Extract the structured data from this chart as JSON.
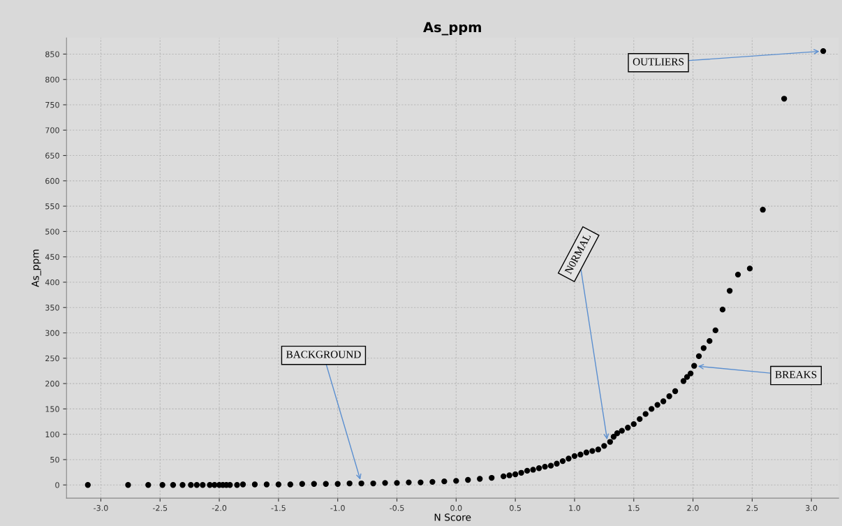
{
  "chart_data": {
    "type": "scatter",
    "title": "As_ppm",
    "xlabel": "N Score",
    "ylabel": "As_ppm",
    "x": [
      -3.11,
      -2.77,
      -2.6,
      -2.48,
      -2.39,
      -2.31,
      -2.24,
      -2.19,
      -2.14,
      -2.08,
      -2.04,
      -2.0,
      -1.97,
      -1.94,
      -1.91,
      -1.85,
      -1.8,
      -1.7,
      -1.6,
      -1.5,
      -1.4,
      -1.3,
      -1.2,
      -1.1,
      -1.0,
      -0.9,
      -0.8,
      -0.7,
      -0.6,
      -0.5,
      -0.4,
      -0.3,
      -0.2,
      -0.1,
      0.0,
      0.1,
      0.2,
      0.3,
      0.4,
      0.45,
      0.5,
      0.55,
      0.6,
      0.65,
      0.7,
      0.75,
      0.8,
      0.85,
      0.9,
      0.95,
      1.0,
      1.05,
      1.1,
      1.15,
      1.2,
      1.25,
      1.3,
      1.33,
      1.36,
      1.4,
      1.45,
      1.5,
      1.55,
      1.6,
      1.65,
      1.7,
      1.75,
      1.8,
      1.85,
      1.92,
      1.95,
      1.98,
      2.01,
      2.05,
      2.09,
      2.14,
      2.19,
      2.25,
      2.31,
      2.38,
      2.48,
      2.59,
      2.77,
      3.1
    ],
    "series": [
      {
        "color": "#000000",
        "values": [
          0,
          0,
          0,
          0,
          0,
          0,
          0,
          0,
          0,
          0,
          0,
          0,
          0,
          0,
          0,
          0,
          1,
          1,
          1,
          1,
          1,
          2,
          2,
          2,
          2,
          3,
          3,
          3,
          4,
          4,
          5,
          5,
          6,
          7,
          8,
          10,
          12,
          14,
          17,
          19,
          21,
          24,
          28,
          30,
          33,
          36,
          38,
          42,
          47,
          52,
          57,
          60,
          64,
          67,
          70,
          77,
          85,
          95,
          102,
          107,
          113,
          120,
          130,
          140,
          150,
          158,
          165,
          175,
          185,
          205,
          213,
          220,
          235,
          254,
          270,
          284,
          305,
          346,
          383,
          415,
          427,
          543,
          762,
          856
        ]
      }
    ],
    "xlim": [
      -3.29,
      3.23
    ],
    "ylim": [
      -26,
      882
    ],
    "xticks": [
      {
        "value": -3,
        "label": "-3.0"
      },
      {
        "value": -2.5,
        "label": "-2.5"
      },
      {
        "value": -2,
        "label": "-2.0"
      },
      {
        "value": -1.5,
        "label": "-1.5"
      },
      {
        "value": -1,
        "label": "-1.0"
      },
      {
        "value": -0.5,
        "label": "-0.5"
      },
      {
        "value": 0,
        "label": "0.0"
      },
      {
        "value": 0.5,
        "label": "0.5"
      },
      {
        "value": 1,
        "label": "1.0"
      },
      {
        "value": 1.5,
        "label": "1.5"
      },
      {
        "value": 2,
        "label": "2.0"
      },
      {
        "value": 2.5,
        "label": "2.5"
      },
      {
        "value": 3,
        "label": "3.0"
      }
    ],
    "yticks": [
      0,
      50,
      100,
      150,
      200,
      250,
      300,
      350,
      400,
      450,
      500,
      550,
      600,
      650,
      700,
      750,
      800,
      850
    ],
    "grid": true,
    "marker": "circle",
    "annotations": [
      {
        "text": "BACKGROUND",
        "x": -0.8,
        "y": 3
      },
      {
        "text": "N0RMAL",
        "x": 1.28,
        "y": 82
      },
      {
        "text": "BREAKS",
        "x": 2.01,
        "y": 235
      },
      {
        "text": "OUTLIERS",
        "x": 3.1,
        "y": 856
      }
    ]
  }
}
